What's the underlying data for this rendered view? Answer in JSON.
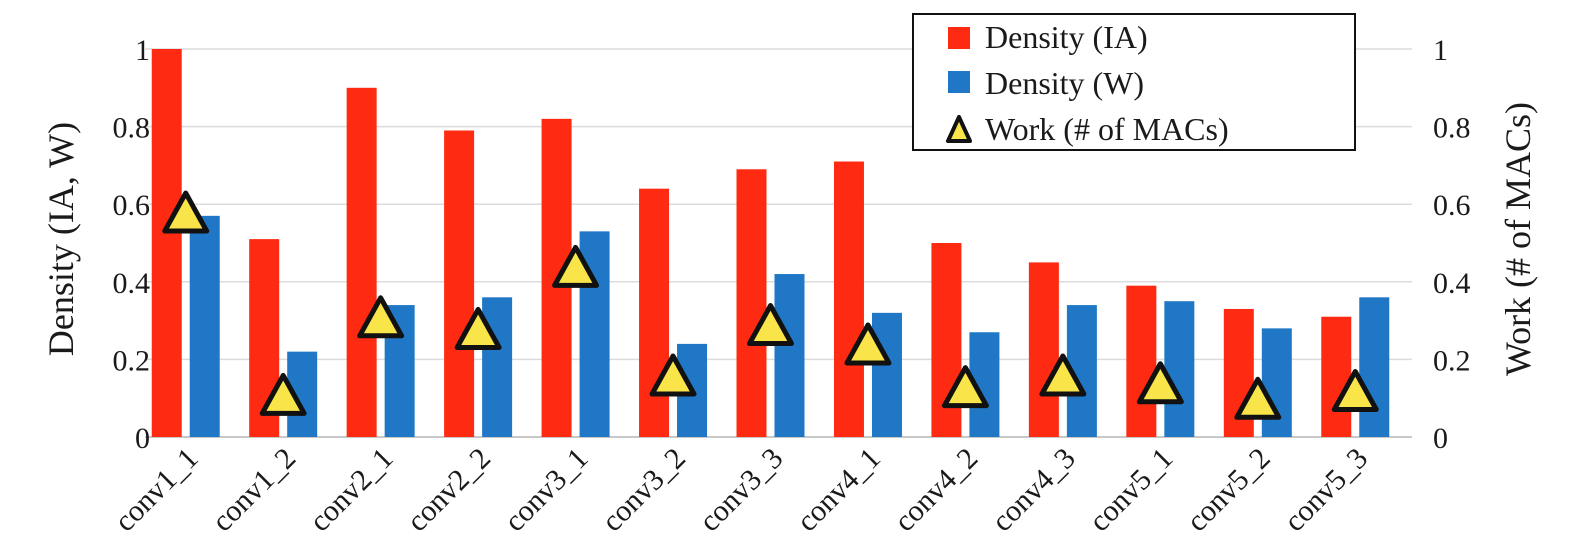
{
  "chart_data": {
    "type": "bar",
    "categories": [
      "conv1_1",
      "conv1_2",
      "conv2_1",
      "conv2_2",
      "conv3_1",
      "conv3_2",
      "conv3_3",
      "conv4_1",
      "conv4_2",
      "conv4_3",
      "conv5_1",
      "conv5_2",
      "conv5_3"
    ],
    "series": [
      {
        "name": "Density (IA)",
        "axis": "left",
        "kind": "bar",
        "color": "#ff2a12",
        "values": [
          1.0,
          0.51,
          0.9,
          0.79,
          0.82,
          0.64,
          0.69,
          0.71,
          0.5,
          0.45,
          0.39,
          0.33,
          0.31
        ]
      },
      {
        "name": "Density (W)",
        "axis": "left",
        "kind": "bar",
        "color": "#1f77c6",
        "values": [
          0.57,
          0.22,
          0.34,
          0.36,
          0.53,
          0.24,
          0.42,
          0.32,
          0.27,
          0.34,
          0.35,
          0.28,
          0.36
        ]
      },
      {
        "name": "Work (# of MACs)",
        "axis": "right",
        "kind": "marker",
        "color": "#f9e44a",
        "values": [
          0.57,
          0.1,
          0.3,
          0.27,
          0.43,
          0.15,
          0.28,
          0.23,
          0.12,
          0.15,
          0.13,
          0.09,
          0.11
        ]
      }
    ],
    "ylabel_left": "Density (IA, W)",
    "ylabel_right": "Work (# of MACs)",
    "ylim_left": [
      0,
      1
    ],
    "ylim_right": [
      0,
      1
    ],
    "yticks_left": [
      "0",
      "0.2",
      "0.4",
      "0.6",
      "0.8",
      "1"
    ],
    "yticks_right": [
      "0",
      "0.2",
      "0.4",
      "0.6",
      "0.8",
      "1"
    ],
    "ytick_values": [
      0,
      0.2,
      0.4,
      0.6,
      0.8,
      1
    ],
    "grid": true,
    "legend_position": "top-right"
  }
}
